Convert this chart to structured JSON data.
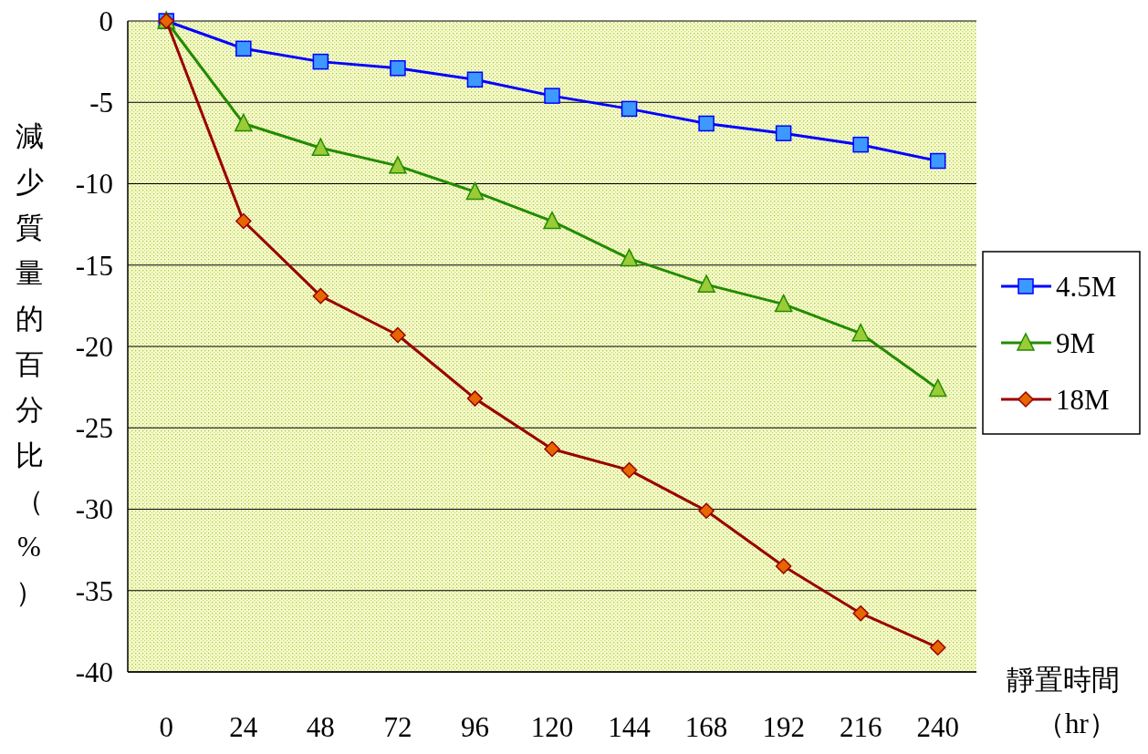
{
  "chart_data": {
    "type": "line",
    "xlabel": "靜置時間（hr）",
    "ylabel": "減少質量的百分比（%）",
    "categories": [
      "0",
      "24",
      "48",
      "72",
      "96",
      "120",
      "144",
      "168",
      "192",
      "216",
      "240"
    ],
    "series": [
      {
        "name": "4.5M",
        "color": "#0000ff",
        "marker": "square",
        "values": [
          0,
          -1.7,
          -2.5,
          -2.9,
          -3.6,
          -4.6,
          -5.4,
          -6.3,
          -6.9,
          -7.6,
          -8.6
        ]
      },
      {
        "name": "9M",
        "color": "#228b00",
        "marker": "triangle",
        "values": [
          0,
          -6.3,
          -7.8,
          -8.9,
          -10.5,
          -12.3,
          -14.6,
          -16.2,
          -17.4,
          -19.2,
          -22.6
        ]
      },
      {
        "name": "18M",
        "color": "#990000",
        "marker": "diamond",
        "values": [
          0,
          -12.3,
          -16.9,
          -19.3,
          -23.2,
          -26.3,
          -27.6,
          -30.1,
          -33.5,
          -36.4,
          -38.5
        ]
      }
    ],
    "ylim": [
      -40,
      0
    ],
    "yticks": [
      -40,
      -35,
      -30,
      -25,
      -20,
      -15,
      -10,
      -5,
      0
    ],
    "grid": "y",
    "legend": "right",
    "line_style": "solid"
  }
}
